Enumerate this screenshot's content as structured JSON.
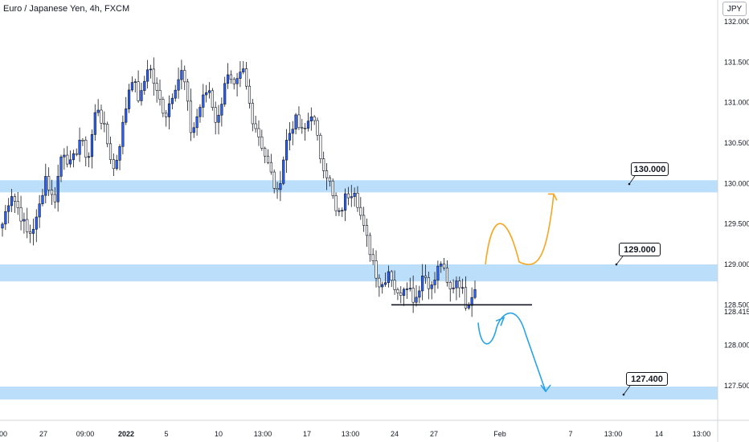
{
  "chart_data": {
    "type": "candlestick",
    "title": "Euro / Japanese Yen, 4h, FXCM",
    "currency": "JPY",
    "ylim": [
      127.1,
      132.15
    ],
    "y_ticks": [
      "132.000",
      "131.500",
      "131.000",
      "130.500",
      "130.000",
      "129.500",
      "129.000",
      "128.500",
      "128.000",
      "127.500"
    ],
    "x_ticks": [
      "00",
      "27",
      "09:00",
      "2022",
      "5",
      "10",
      "13:00",
      "17",
      "13:00",
      "24",
      "27",
      "Feb",
      "7",
      "13:00",
      "14",
      "13:00"
    ],
    "current_price": "128.415",
    "zones": [
      {
        "label": "130.000",
        "low": 129.89,
        "high": 130.04
      },
      {
        "label": "129.000",
        "low": 128.79,
        "high": 129.0
      },
      {
        "label": "127.400",
        "low": 127.33,
        "high": 127.49
      }
    ],
    "support_line": 128.5,
    "bullish_color": "#2962ff",
    "zone_color": "#bbdefb",
    "bull_path_color": "#f5a623",
    "bear_path_color": "#29a3e8",
    "path_up": [
      129.0,
      129.42,
      129.03,
      129.87
    ],
    "path_down": [
      128.28,
      128.05,
      128.34,
      127.43
    ],
    "price_path": [
      129.5,
      129.9,
      129.65,
      129.35,
      129.55,
      130.1,
      129.75,
      130.45,
      130.2,
      130.55,
      130.3,
      131.0,
      130.6,
      130.15,
      130.7,
      131.35,
      131.0,
      131.5,
      131.1,
      130.85,
      131.2,
      131.4,
      130.6,
      130.95,
      131.2,
      130.7,
      131.35,
      131.15,
      131.4,
      130.85,
      130.55,
      130.2,
      129.85,
      130.5,
      130.8,
      130.6,
      130.9,
      130.35,
      130.05,
      129.55,
      129.85,
      129.95,
      129.45,
      129.1,
      128.7,
      128.95,
      128.6,
      128.8,
      128.55,
      128.9,
      128.7,
      129.05,
      128.65,
      128.85,
      128.5,
      128.72
    ]
  }
}
